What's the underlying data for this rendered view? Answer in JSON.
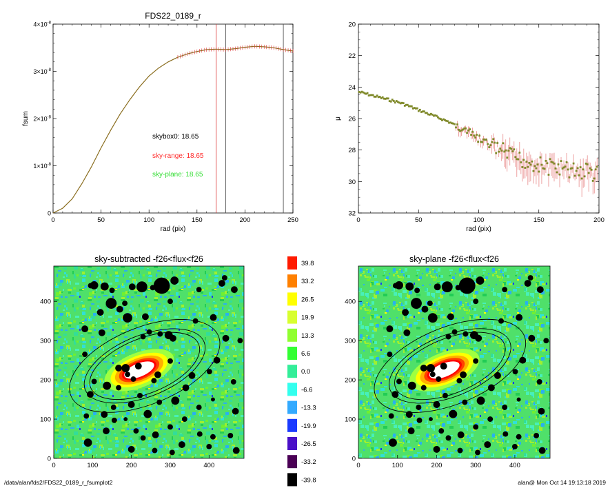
{
  "footer": {
    "path": "/data/alan/fds2/FDS22_0189_r_fsumplot2",
    "user_stamp": "alan@  Mon Oct 14 19:13:18 2019"
  },
  "colors": {
    "sky_range": "#ff2a2a",
    "sky_plane": "#33dd33",
    "curve": "#8a6d1e",
    "points": "#7f8a2a",
    "errorbar": "#e57a7a"
  },
  "chart_data": [
    {
      "type": "line",
      "title": "FDS22_0189_r",
      "xlabel": "rad (pix)",
      "ylabel": "fsum",
      "xlim": [
        0,
        250
      ],
      "ylim": [
        0,
        4e-08
      ],
      "x_ticks": [
        "0",
        "50",
        "100",
        "150",
        "200",
        "250"
      ],
      "y_ticks": [
        {
          "mant": "0",
          "exp": ""
        },
        {
          "mant": "1×10",
          "exp": "-8"
        },
        {
          "mant": "2×10",
          "exp": "-8"
        },
        {
          "mant": "3×10",
          "exp": "-8"
        },
        {
          "mant": "4×10",
          "exp": "-8"
        }
      ],
      "annotations": [
        "skybox0: 18.65",
        "sky-range: 18.65",
        "sky-plane: 18.65"
      ],
      "vertical_lines": [
        {
          "x": 170,
          "color": "red"
        },
        {
          "x": 180,
          "color": "black"
        },
        {
          "x": 240,
          "color": "black"
        }
      ],
      "series": [
        {
          "x": [
            0,
            10,
            20,
            30,
            40,
            50,
            60,
            70,
            80,
            90,
            100,
            110,
            120,
            130,
            140,
            150,
            160,
            170,
            180,
            190,
            200,
            210,
            220,
            230,
            240,
            250
          ],
          "values": [
            0,
            1e-09,
            3e-09,
            6.2e-09,
            9.8e-09,
            1.38e-08,
            1.75e-08,
            2.1e-08,
            2.4e-08,
            2.67e-08,
            2.9e-08,
            3.07e-08,
            3.2e-08,
            3.3e-08,
            3.37e-08,
            3.42e-08,
            3.46e-08,
            3.47e-08,
            3.46e-08,
            3.48e-08,
            3.51e-08,
            3.53e-08,
            3.52e-08,
            3.5e-08,
            3.46e-08,
            3.43e-08
          ]
        }
      ]
    },
    {
      "type": "scatter",
      "xlabel": "rad (pix)",
      "ylabel": "μ",
      "xlim": [
        0,
        200
      ],
      "ylim": [
        32,
        20
      ],
      "x_ticks": [
        "0",
        "50",
        "100",
        "150",
        "200"
      ],
      "y_ticks": [
        "20",
        "22",
        "24",
        "26",
        "28",
        "30",
        "32"
      ],
      "series": [
        {
          "x": [
            0,
            5,
            10,
            15,
            20,
            25,
            30,
            35,
            40,
            45,
            50,
            55,
            60,
            65,
            70,
            75,
            80,
            85,
            90,
            95,
            100,
            105,
            110,
            115,
            120,
            125,
            130,
            135,
            140,
            145,
            150,
            155,
            160,
            165,
            170,
            175,
            180,
            185,
            190,
            195,
            200
          ],
          "values": [
            24.3,
            24.4,
            24.5,
            24.6,
            24.7,
            24.8,
            24.9,
            25.0,
            25.15,
            25.3,
            25.45,
            25.6,
            25.75,
            25.9,
            26.05,
            26.2,
            26.4,
            26.6,
            26.8,
            27.05,
            27.3,
            27.5,
            27.7,
            27.9,
            28.1,
            28.3,
            28.5,
            28.6,
            28.75,
            28.8,
            28.95,
            29.0,
            29.1,
            29.05,
            29.2,
            29.3,
            29.25,
            29.4,
            29.3,
            29.5,
            29.45
          ]
        }
      ]
    },
    {
      "type": "heatmap",
      "title": "sky-subtracted -f26<flux<f26",
      "xlim": [
        0,
        490
      ],
      "ylim": [
        0,
        490
      ],
      "x_ticks": [
        "0",
        "100",
        "200",
        "300",
        "400"
      ],
      "y_ticks": [
        "0",
        "100",
        "200",
        "300",
        "400"
      ]
    },
    {
      "type": "heatmap",
      "title": "sky-plane -f26<flux<f26",
      "xlim": [
        0,
        490
      ],
      "ylim": [
        0,
        490
      ],
      "x_ticks": [
        "0",
        "100",
        "200",
        "300",
        "400"
      ],
      "y_ticks": [
        "0",
        "100",
        "200",
        "300",
        "400"
      ]
    }
  ],
  "colorbar": {
    "labels": [
      "39.8",
      "33.2",
      "26.5",
      "19.9",
      "13.3",
      "6.6",
      "0.0",
      "-6.6",
      "-13.3",
      "-19.9",
      "-26.5",
      "-33.2",
      "-39.8"
    ],
    "colors": [
      "#ff1a00",
      "#ff8000",
      "#ffff00",
      "#d8ff30",
      "#90ff30",
      "#33ff33",
      "#33ee99",
      "#33ffee",
      "#33aaff",
      "#1a3aff",
      "#4a10c8",
      "#4a0055",
      "#000000"
    ]
  },
  "maps": {
    "blobs": [
      [
        148,
        395,
        8
      ],
      [
        278,
        440,
        12
      ],
      [
        227,
        437,
        8
      ],
      [
        104,
        441,
        6
      ],
      [
        131,
        438,
        6
      ],
      [
        150,
        428,
        4
      ],
      [
        202,
        437,
        5
      ],
      [
        255,
        435,
        4
      ],
      [
        311,
        453,
        6
      ],
      [
        95,
        440,
        4
      ],
      [
        190,
        358,
        7
      ],
      [
        236,
        361,
        5
      ],
      [
        124,
        320,
        5
      ],
      [
        296,
        314,
        6
      ],
      [
        307,
        306,
        5
      ],
      [
        246,
        322,
        4
      ],
      [
        230,
        310,
        4
      ],
      [
        274,
        317,
        4
      ],
      [
        80,
        330,
        5
      ],
      [
        185,
        230,
        6
      ],
      [
        167,
        230,
        5
      ],
      [
        190,
        214,
        4
      ],
      [
        205,
        202,
        4
      ],
      [
        218,
        235,
        5
      ],
      [
        268,
        213,
        5
      ],
      [
        258,
        198,
        4
      ],
      [
        300,
        248,
        4
      ],
      [
        80,
        265,
        4
      ],
      [
        167,
        180,
        4
      ],
      [
        137,
        185,
        6
      ],
      [
        104,
        196,
        4
      ],
      [
        313,
        147,
        6
      ],
      [
        356,
        211,
        5
      ],
      [
        272,
        143,
        4
      ],
      [
        200,
        137,
        5
      ],
      [
        156,
        97,
        4
      ],
      [
        88,
        40,
        6
      ],
      [
        135,
        70,
        5
      ],
      [
        200,
        23,
        5
      ],
      [
        260,
        20,
        4
      ],
      [
        212,
        70,
        4
      ],
      [
        262,
        60,
        5
      ],
      [
        300,
        80,
        4
      ],
      [
        330,
        35,
        5
      ],
      [
        410,
        55,
        4
      ],
      [
        376,
        62,
        4
      ],
      [
        400,
        30,
        4
      ],
      [
        468,
        120,
        5
      ],
      [
        337,
        100,
        4
      ],
      [
        242,
        113,
        6
      ],
      [
        130,
        112,
        5
      ],
      [
        94,
        163,
        5
      ],
      [
        401,
        221,
        4
      ],
      [
        420,
        250,
        5
      ],
      [
        443,
        306,
        5
      ],
      [
        411,
        359,
        5
      ],
      [
        433,
        446,
        5
      ],
      [
        374,
        430,
        4
      ],
      [
        465,
        430,
        5
      ],
      [
        440,
        460,
        4
      ],
      [
        183,
        395,
        4
      ],
      [
        170,
        380,
        5
      ],
      [
        120,
        372,
        5
      ],
      [
        463,
        195,
        4
      ],
      [
        340,
        180,
        5
      ],
      [
        222,
        160,
        4
      ],
      [
        185,
        100,
        3
      ],
      [
        154,
        130,
        4
      ],
      [
        230,
        52,
        4
      ],
      [
        305,
        15,
        4
      ],
      [
        470,
        20,
        5
      ],
      [
        455,
        58,
        4
      ],
      [
        374,
        130,
        4
      ],
      [
        410,
        150,
        3
      ],
      [
        365,
        350,
        4
      ],
      [
        480,
        300,
        4
      ],
      [
        300,
        400,
        4
      ],
      [
        84,
        108,
        4
      ]
    ]
  }
}
